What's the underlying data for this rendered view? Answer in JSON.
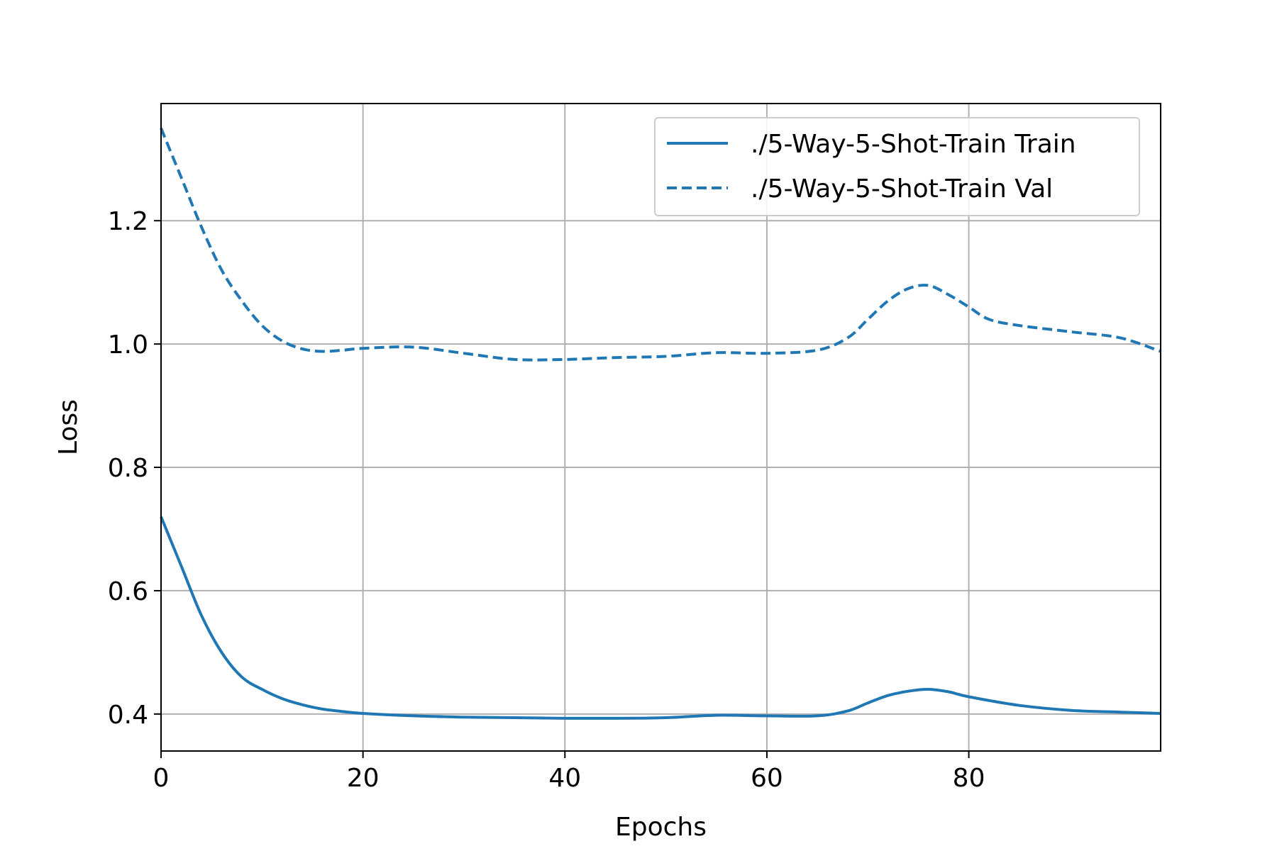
{
  "chart_data": {
    "type": "line",
    "title": "",
    "xlabel": "Epochs",
    "ylabel": "Loss",
    "xlim": [
      0,
      99
    ],
    "ylim": [
      0.34,
      1.39
    ],
    "xticks": [
      0,
      20,
      40,
      60,
      80
    ],
    "xtick_labels": [
      "0",
      "20",
      "40",
      "60",
      "80"
    ],
    "yticks": [
      0.4,
      0.6,
      0.8,
      1.0,
      1.2
    ],
    "ytick_labels": [
      "0.4",
      "0.6",
      "0.8",
      "1.0",
      "1.2"
    ],
    "grid": true,
    "legend_position": "upper-right",
    "series": [
      {
        "name": "./5-Way-5-Shot-Train Train",
        "color": "#1f77b4",
        "style": "solid",
        "x": [
          0,
          2,
          4,
          6,
          8,
          10,
          12,
          14,
          16,
          18,
          20,
          25,
          30,
          35,
          40,
          45,
          50,
          55,
          60,
          65,
          68,
          70,
          72,
          74,
          76,
          78,
          80,
          85,
          90,
          95,
          99
        ],
        "y": [
          0.72,
          0.64,
          0.56,
          0.5,
          0.46,
          0.44,
          0.425,
          0.415,
          0.408,
          0.404,
          0.401,
          0.397,
          0.395,
          0.394,
          0.393,
          0.393,
          0.394,
          0.398,
          0.397,
          0.397,
          0.405,
          0.418,
          0.43,
          0.437,
          0.44,
          0.436,
          0.428,
          0.414,
          0.406,
          0.403,
          0.401
        ]
      },
      {
        "name": "./5-Way-5-Shot-Train Val",
        "color": "#1f77b4",
        "style": "dashed",
        "x": [
          0,
          2,
          4,
          6,
          8,
          10,
          12,
          14,
          16,
          18,
          20,
          25,
          30,
          35,
          40,
          45,
          50,
          55,
          60,
          65,
          68,
          70,
          72,
          74,
          76,
          78,
          80,
          82,
          85,
          90,
          95,
          99
        ],
        "y": [
          1.35,
          1.27,
          1.19,
          1.12,
          1.07,
          1.03,
          1.005,
          0.992,
          0.988,
          0.99,
          0.993,
          0.995,
          0.985,
          0.975,
          0.975,
          0.978,
          0.98,
          0.986,
          0.985,
          0.99,
          1.01,
          1.04,
          1.07,
          1.09,
          1.095,
          1.08,
          1.06,
          1.04,
          1.03,
          1.02,
          1.01,
          0.988
        ]
      }
    ]
  }
}
